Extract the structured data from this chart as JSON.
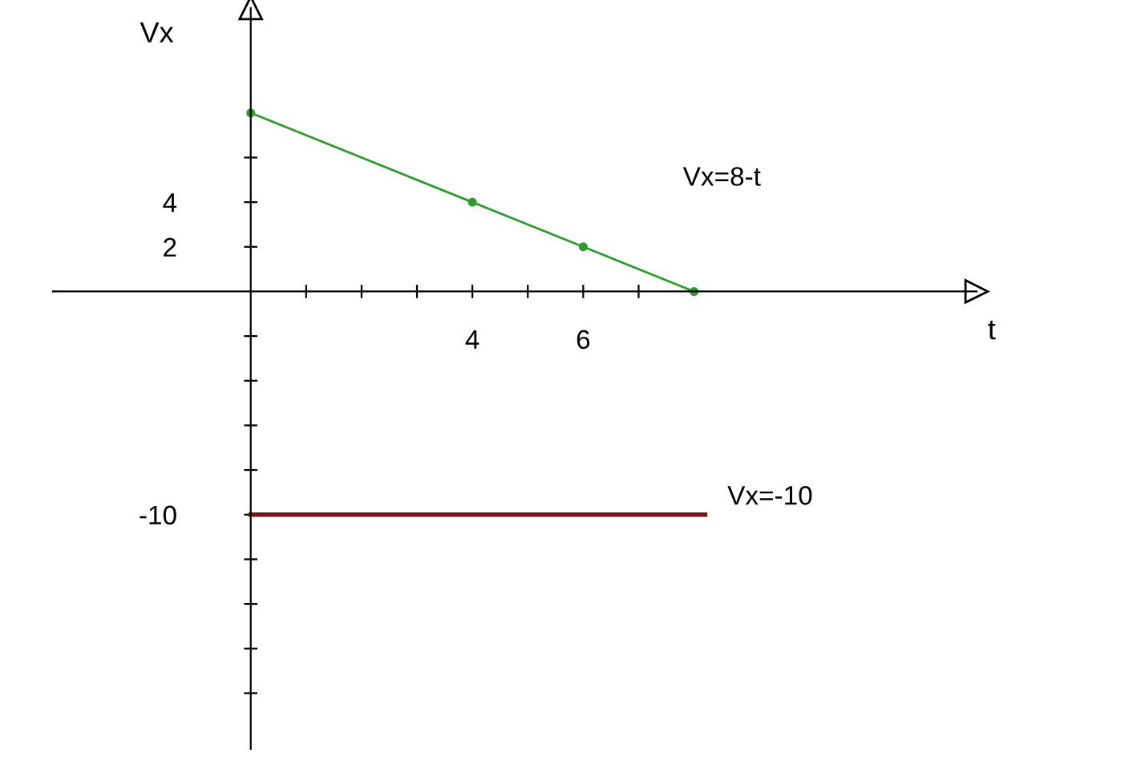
{
  "chart_data": {
    "type": "line",
    "xlabel": "t",
    "ylabel": "Vx",
    "xlim": [
      -3.57,
      13.1
    ],
    "ylim": [
      -20.5,
      12.7
    ],
    "xticks": [
      {
        "value": 1,
        "label": null
      },
      {
        "value": 2,
        "label": null
      },
      {
        "value": 3,
        "label": null
      },
      4,
      {
        "value": 5,
        "label": null
      },
      6,
      {
        "value": 7,
        "label": null
      }
    ],
    "yticks": [
      {
        "value": -18,
        "label": null
      },
      {
        "value": -16,
        "label": null
      },
      {
        "value": -14,
        "label": null
      },
      {
        "value": -12,
        "label": null
      },
      -10,
      {
        "value": -8,
        "label": null
      },
      {
        "value": -6,
        "label": null
      },
      {
        "value": -4,
        "label": null
      },
      {
        "value": -2,
        "label": null
      },
      2,
      4,
      {
        "value": 6,
        "label": null
      }
    ],
    "grid": false,
    "legend": false,
    "series": [
      {
        "name": "Vx=8-t",
        "color": "#2e9a2e",
        "x": [
          0,
          4,
          6,
          8
        ],
        "values": [
          8,
          4,
          2,
          0
        ],
        "marker": "circle"
      },
      {
        "name": "Vx=-10",
        "color": "#7a1414",
        "x": [
          0,
          8.2
        ],
        "values": [
          -10,
          -10
        ],
        "marker": "none"
      }
    ]
  }
}
